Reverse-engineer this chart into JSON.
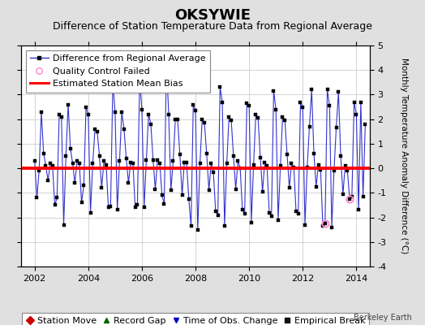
{
  "title": "OKSYWIE",
  "subtitle": "Difference of Station Temperature Data from Regional Average",
  "ylabel_right": "Monthly Temperature Anomaly Difference (°C)",
  "xlim": [
    2001.5,
    2014.5
  ],
  "ylim": [
    -4,
    5
  ],
  "yticks": [
    -4,
    -3,
    -2,
    -1,
    0,
    1,
    2,
    3,
    4,
    5
  ],
  "xticks": [
    2002,
    2004,
    2006,
    2008,
    2010,
    2012,
    2014
  ],
  "bias_value": 0.0,
  "background_color": "#e0e0e0",
  "plot_bg_color": "#ffffff",
  "line_color": "#3333cc",
  "bias_color": "#ff0000",
  "marker_color": "#000000",
  "qc_fail_color": "#ff88cc",
  "title_fontsize": 13,
  "subtitle_fontsize": 9,
  "tick_fontsize": 8,
  "legend_fontsize": 8,
  "watermark": "Berkeley Earth",
  "monthly_data": [
    0.3,
    -1.2,
    -0.1,
    2.3,
    0.6,
    0.1,
    -0.5,
    0.2,
    0.1,
    -1.5,
    -1.2,
    2.2,
    2.1,
    -2.3,
    0.5,
    2.6,
    0.8,
    0.2,
    -0.6,
    0.3,
    0.2,
    -1.4,
    -0.7,
    2.5,
    2.2,
    -1.8,
    0.2,
    1.6,
    1.5,
    0.5,
    -0.8,
    0.3,
    0.15,
    -1.6,
    -1.55,
    3.5,
    2.3,
    -1.7,
    0.3,
    2.3,
    1.6,
    0.4,
    -0.6,
    0.25,
    0.2,
    -1.6,
    -1.5,
    3.6,
    2.4,
    -1.6,
    0.35,
    2.2,
    1.8,
    0.35,
    -0.85,
    0.35,
    0.2,
    -1.1,
    -1.45,
    4.3,
    2.2,
    -0.9,
    0.3,
    2.0,
    2.0,
    0.55,
    -1.1,
    0.25,
    0.25,
    -1.25,
    -2.35,
    2.6,
    2.35,
    -2.5,
    0.2,
    2.0,
    1.85,
    0.6,
    -0.9,
    0.2,
    -0.15,
    -1.75,
    -1.9,
    3.3,
    2.7,
    -2.35,
    0.2,
    2.1,
    1.95,
    0.5,
    -0.85,
    0.3,
    0.0,
    -1.7,
    -1.85,
    2.65,
    2.55,
    -2.2,
    0.15,
    2.2,
    2.05,
    0.45,
    -0.95,
    0.25,
    0.1,
    -1.8,
    -1.95,
    3.15,
    2.4,
    -2.1,
    0.1,
    2.1,
    1.95,
    0.55,
    -0.8,
    0.2,
    0.05,
    -1.75,
    -1.85,
    2.7,
    2.5,
    -2.3,
    0.05,
    1.7,
    3.2,
    0.6,
    -0.75,
    0.15,
    -0.05,
    -2.35,
    -2.25,
    3.2,
    2.55,
    -2.4,
    -0.1,
    1.65,
    3.1,
    0.5,
    -1.05,
    0.1,
    -0.1,
    -1.25,
    -1.15,
    2.7,
    2.2,
    -1.7,
    2.7,
    -1.15,
    1.8
  ],
  "qc_fail_indices": [
    130,
    141
  ],
  "start_year": 2002,
  "start_month": 1
}
